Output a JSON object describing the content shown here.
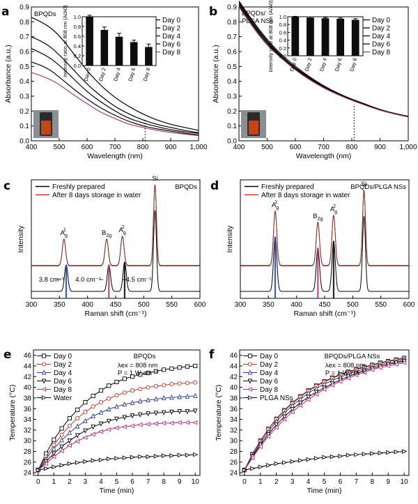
{
  "chart_data": [
    {
      "id": "a",
      "type": "line",
      "panel_label": "a",
      "inner_label": "BPQDs",
      "xlabel": "Wavelength (nm)",
      "ylabel": "Absorbance (a.u.)",
      "xlim": [
        400,
        1000
      ],
      "ylim": [
        0,
        0.9
      ],
      "xticks": [
        400,
        500,
        600,
        700,
        800,
        900,
        1000
      ],
      "xtick_labels": [
        "400",
        "500",
        "600",
        "700",
        "800",
        "900",
        "1,000"
      ],
      "yticks": [
        0.0,
        0.1,
        0.2,
        0.3,
        0.4,
        0.5,
        0.6,
        0.7,
        0.8,
        0.9
      ],
      "ytick_labels": [
        "0.0",
        "0.1",
        "0.2",
        "0.3",
        "0.4",
        "0.5",
        "0.6",
        "0.7",
        "0.8",
        "0.9"
      ],
      "marker_line_x": 808,
      "x": [
        400,
        450,
        500,
        550,
        600,
        650,
        700,
        750,
        800,
        850,
        900,
        950,
        1000
      ],
      "series": [
        {
          "name": "Day 0",
          "color": "#000000",
          "values": [
            0.83,
            0.79,
            0.71,
            0.59,
            0.47,
            0.37,
            0.29,
            0.23,
            0.18,
            0.14,
            0.11,
            0.09,
            0.07
          ]
        },
        {
          "name": "Day 2",
          "color": "#000000",
          "values": [
            0.7,
            0.66,
            0.58,
            0.48,
            0.38,
            0.3,
            0.23,
            0.18,
            0.14,
            0.11,
            0.09,
            0.07,
            0.055
          ]
        },
        {
          "name": "Day 4",
          "color": "#000000",
          "values": [
            0.62,
            0.58,
            0.51,
            0.42,
            0.33,
            0.26,
            0.2,
            0.15,
            0.12,
            0.095,
            0.075,
            0.06,
            0.05
          ]
        },
        {
          "name": "Day 6",
          "color": "#000000",
          "values": [
            0.53,
            0.5,
            0.43,
            0.35,
            0.28,
            0.22,
            0.17,
            0.13,
            0.1,
            0.08,
            0.065,
            0.05,
            0.04
          ]
        },
        {
          "name": "Day 8",
          "color": "#a03f7a",
          "values": [
            0.46,
            0.43,
            0.38,
            0.31,
            0.25,
            0.19,
            0.15,
            0.11,
            0.09,
            0.07,
            0.055,
            0.045,
            0.035
          ]
        }
      ],
      "legend": [
        "Day 0",
        "Day 2",
        "Day 4",
        "Day 6",
        "Day 8"
      ],
      "inset": {
        "type": "bar",
        "ylabel": "Intensity ratio at 808 nm (A/A0)",
        "ylim": [
          0,
          1.0
        ],
        "yticks": [
          0.0,
          0.2,
          0.4,
          0.6,
          0.8,
          1.0
        ],
        "ytick_labels": [
          "0.0",
          "0.2",
          "0.4",
          "0.6",
          "0.8",
          "1.0"
        ],
        "categories": [
          "Day 0",
          "Day 2",
          "Day 4",
          "Day 6",
          "Day 8"
        ],
        "values": [
          1.0,
          0.73,
          0.59,
          0.48,
          0.38
        ],
        "errors": [
          0.03,
          0.06,
          0.07,
          0.04,
          0.06
        ]
      }
    },
    {
      "id": "b",
      "type": "line",
      "panel_label": "b",
      "inner_label": "BPQDs/ PLGA NSs",
      "inner_label_lines": [
        "BPQDs/",
        "PLGA NSs"
      ],
      "xlabel": "Wavelength (nm)",
      "ylabel": "Absorbance (a.u.)",
      "xlim": [
        400,
        1000
      ],
      "ylim": [
        0,
        0.9
      ],
      "xticks": [
        400,
        500,
        600,
        700,
        800,
        900,
        1000
      ],
      "xtick_labels": [
        "400",
        "500",
        "600",
        "700",
        "800",
        "900",
        "1,000"
      ],
      "yticks": [
        0.0,
        0.1,
        0.2,
        0.3,
        0.4,
        0.5,
        0.6,
        0.7,
        0.8,
        0.9
      ],
      "ytick_labels": [
        "0.0",
        "0.1",
        "0.2",
        "0.3",
        "0.4",
        "0.5",
        "0.6",
        "0.7",
        "0.8",
        "0.9"
      ],
      "marker_line_x": 808,
      "x": [
        400,
        450,
        500,
        550,
        600,
        650,
        700,
        750,
        800,
        850,
        900,
        950,
        1000
      ],
      "series": [
        {
          "name": "Day 0",
          "color": "#000000",
          "values": [
            0.94,
            0.8,
            0.68,
            0.58,
            0.5,
            0.43,
            0.37,
            0.32,
            0.28,
            0.245,
            0.21,
            0.185,
            0.165
          ]
        },
        {
          "name": "Day 2",
          "color": "#000000",
          "values": [
            0.93,
            0.79,
            0.67,
            0.57,
            0.49,
            0.425,
            0.365,
            0.318,
            0.278,
            0.243,
            0.209,
            0.183,
            0.163
          ]
        },
        {
          "name": "Day 4",
          "color": "#000000",
          "values": [
            0.92,
            0.78,
            0.66,
            0.565,
            0.485,
            0.42,
            0.362,
            0.315,
            0.276,
            0.241,
            0.208,
            0.182,
            0.162
          ]
        },
        {
          "name": "Day 6",
          "color": "#000000",
          "values": [
            0.91,
            0.77,
            0.65,
            0.56,
            0.48,
            0.415,
            0.358,
            0.312,
            0.274,
            0.239,
            0.206,
            0.181,
            0.161
          ]
        },
        {
          "name": "Day 8",
          "color": "#a03f7a",
          "values": [
            0.9,
            0.76,
            0.64,
            0.555,
            0.475,
            0.41,
            0.355,
            0.31,
            0.272,
            0.237,
            0.205,
            0.18,
            0.16
          ]
        }
      ],
      "legend": [
        "Day 0",
        "Day 2",
        "Day 4",
        "Day 6",
        "Day 8"
      ],
      "inset": {
        "type": "bar",
        "ylabel": "Intensity ratio at 808 nm (A/A0)",
        "ylim": [
          0,
          1.0
        ],
        "yticks": [
          0.0,
          0.2,
          0.4,
          0.6,
          0.8,
          1.0
        ],
        "ytick_labels": [
          "0.0",
          "0.2",
          "0.4",
          "0.6",
          "0.8",
          "1.0"
        ],
        "categories": [
          "Day 0",
          "Day 2",
          "Day 4",
          "Day 6",
          "Day 8"
        ],
        "values": [
          1.0,
          0.98,
          0.96,
          0.95,
          0.92
        ],
        "errors": [
          0.01,
          0.02,
          0.02,
          0.02,
          0.03
        ]
      }
    },
    {
      "id": "c",
      "type": "line",
      "panel_label": "c",
      "inner_label": "BPQDs",
      "xlabel": "Raman shift (cm⁻¹)",
      "ylabel": "Intensity",
      "xlim": [
        300,
        600
      ],
      "xticks": [
        300,
        350,
        400,
        450,
        500,
        550,
        600
      ],
      "xtick_labels": [
        "300",
        "350",
        "400",
        "450",
        "500",
        "550",
        "600"
      ],
      "series": [
        {
          "name": "Freshly prepared",
          "color": "#000000"
        },
        {
          "name": "After 8 days storage in water",
          "color": "#c0392b"
        }
      ],
      "legend": [
        "Freshly prepared",
        "After 8 days storage in water"
      ],
      "peaks": [
        {
          "label": "A",
          "sup": "1",
          "sub": "g",
          "fresh": 362,
          "aged": 358
        },
        {
          "label": "B",
          "sup": "",
          "sub": "2g",
          "fresh": 438,
          "aged": 434
        },
        {
          "label": "A",
          "sup": "2",
          "sub": "g",
          "fresh": 466,
          "aged": 462
        },
        {
          "label": "Si",
          "sup": "",
          "sub": "",
          "fresh": 520,
          "aged": 520
        }
      ],
      "shifts": [
        "3.8 cm⁻¹",
        "4.0 cm⁻¹",
        "4.5 cm⁻¹"
      ]
    },
    {
      "id": "d",
      "type": "line",
      "panel_label": "d",
      "inner_label": "BPQDs/PLGA NSs",
      "xlabel": "Raman shift (cm⁻¹)",
      "ylabel": "Intensity",
      "xlim": [
        300,
        600
      ],
      "xticks": [
        300,
        350,
        400,
        450,
        500,
        550,
        600
      ],
      "xtick_labels": [
        "300",
        "350",
        "400",
        "450",
        "500",
        "550",
        "600"
      ],
      "series": [
        {
          "name": "Freshly prepared",
          "color": "#000000"
        },
        {
          "name": "After 8 days storage in water",
          "color": "#c0392b"
        }
      ],
      "legend": [
        "Freshly prepared",
        "After 8 days storage in water"
      ],
      "peaks": [
        {
          "label": "A",
          "sup": "1",
          "sub": "g",
          "fresh": 362,
          "aged": 362
        },
        {
          "label": "B",
          "sup": "",
          "sub": "2g",
          "fresh": 438,
          "aged": 438
        },
        {
          "label": "A",
          "sup": "2",
          "sub": "g",
          "fresh": 466,
          "aged": 466
        },
        {
          "label": "Si",
          "sup": "",
          "sub": "",
          "fresh": 520,
          "aged": 520
        }
      ]
    },
    {
      "id": "e",
      "type": "line",
      "panel_label": "e",
      "inner_label": "BPQDs",
      "condition_lines": [
        "λex = 808 nm",
        "P = 1 W cm⁻²"
      ],
      "xlabel": "Time (min)",
      "ylabel": "Temperature (°C)",
      "xlim": [
        -0.3,
        10.3
      ],
      "ylim": [
        23.5,
        47
      ],
      "xticks": [
        0,
        1,
        2,
        3,
        4,
        5,
        6,
        7,
        8,
        9,
        10
      ],
      "xtick_labels": [
        "0",
        "1",
        "2",
        "3",
        "4",
        "5",
        "6",
        "7",
        "8",
        "9",
        "10"
      ],
      "yticks": [
        24,
        26,
        28,
        30,
        32,
        34,
        36,
        38,
        40,
        42,
        44,
        46
      ],
      "ytick_labels": [
        "24",
        "26",
        "28",
        "30",
        "32",
        "34",
        "36",
        "38",
        "40",
        "42",
        "44",
        "46"
      ],
      "x": [
        0,
        0.5,
        1,
        1.5,
        2,
        2.5,
        3,
        3.5,
        4,
        4.5,
        5,
        5.5,
        6,
        6.5,
        7,
        7.5,
        8,
        8.5,
        9,
        9.5,
        10
      ],
      "series": [
        {
          "name": "Day 0",
          "color": "#000000",
          "marker": "square",
          "values": [
            24.5,
            27.6,
            30.2,
            32.3,
            34.2,
            35.8,
            37.2,
            38.4,
            39.4,
            40.3,
            41.0,
            41.6,
            42.0,
            42.4,
            42.7,
            43.0,
            43.3,
            43.5,
            43.7,
            43.9,
            44.0
          ]
        },
        {
          "name": "Day 2",
          "color": "#c0392b",
          "marker": "circle",
          "values": [
            24.5,
            27.0,
            29.2,
            31.1,
            32.8,
            34.2,
            35.4,
            36.4,
            37.2,
            37.9,
            38.5,
            39.0,
            39.4,
            39.7,
            40.0,
            40.2,
            40.4,
            40.6,
            40.7,
            40.8,
            40.9
          ]
        },
        {
          "name": "Day 4",
          "color": "#2c3e8f",
          "marker": "triangle-up",
          "values": [
            24.5,
            26.6,
            28.5,
            30.1,
            31.5,
            32.7,
            33.7,
            34.6,
            35.3,
            35.9,
            36.4,
            36.8,
            37.1,
            37.4,
            37.6,
            37.8,
            38.0,
            38.1,
            38.2,
            38.3,
            38.4
          ]
        },
        {
          "name": "Day 6",
          "color": "#000000",
          "marker": "triangle-down",
          "values": [
            24.5,
            26.1,
            27.6,
            28.9,
            30.0,
            31.0,
            31.9,
            32.6,
            33.2,
            33.7,
            34.1,
            34.4,
            34.7,
            34.9,
            35.1,
            35.2,
            35.3,
            35.4,
            35.5,
            35.5,
            35.6
          ]
        },
        {
          "name": "Day 8",
          "color": "#b0306f",
          "marker": "triangle-left",
          "values": [
            24.5,
            25.7,
            27.0,
            28.1,
            29.1,
            29.9,
            30.6,
            31.2,
            31.7,
            32.1,
            32.4,
            32.6,
            32.8,
            33.0,
            33.1,
            33.2,
            33.3,
            33.3,
            33.4,
            33.4,
            33.4
          ]
        },
        {
          "name": "Water",
          "color": "#000000",
          "marker": "triangle-right",
          "values": [
            24.5,
            24.8,
            25.1,
            25.4,
            25.7,
            25.9,
            26.1,
            26.3,
            26.4,
            26.6,
            26.7,
            26.8,
            26.9,
            27.0,
            27.0,
            27.1,
            27.2,
            27.2,
            27.3,
            27.3,
            27.4
          ]
        }
      ],
      "legend": [
        "Day 0",
        "Day 2",
        "Day 4",
        "Day 6",
        "Day 8",
        "Water"
      ]
    },
    {
      "id": "f",
      "type": "line",
      "panel_label": "f",
      "inner_label": "BPQDs/PLGA NSs",
      "condition_lines": [
        "λex = 808 nm",
        "P = 1 W cm⁻²"
      ],
      "xlabel": "Time (min)",
      "ylabel": "Temperature (°C)",
      "xlim": [
        -0.3,
        10.3
      ],
      "ylim": [
        23.5,
        47
      ],
      "xticks": [
        0,
        1,
        2,
        3,
        4,
        5,
        6,
        7,
        8,
        9,
        10
      ],
      "xtick_labels": [
        "0",
        "1",
        "2",
        "3",
        "4",
        "5",
        "6",
        "7",
        "8",
        "9",
        "10"
      ],
      "yticks": [
        24,
        26,
        28,
        30,
        32,
        34,
        36,
        38,
        40,
        42,
        44,
        46
      ],
      "ytick_labels": [
        "24",
        "26",
        "28",
        "30",
        "32",
        "34",
        "36",
        "38",
        "40",
        "42",
        "44",
        "46"
      ],
      "x": [
        0,
        0.5,
        1,
        1.5,
        2,
        2.5,
        3,
        3.5,
        4,
        4.5,
        5,
        5.5,
        6,
        6.5,
        7,
        7.5,
        8,
        8.5,
        9,
        9.5,
        10
      ],
      "series": [
        {
          "name": "Day 0",
          "color": "#000000",
          "marker": "square",
          "values": [
            24.5,
            27.5,
            30.0,
            32.2,
            34.1,
            35.7,
            37.1,
            38.3,
            39.4,
            40.3,
            41.1,
            41.8,
            42.4,
            42.9,
            43.4,
            43.8,
            44.2,
            44.6,
            44.9,
            45.2,
            45.5
          ]
        },
        {
          "name": "Day 2",
          "color": "#c0392b",
          "marker": "circle",
          "values": [
            24.5,
            27.4,
            29.9,
            32.1,
            34.0,
            35.6,
            37.0,
            38.2,
            39.3,
            40.2,
            41.0,
            41.7,
            42.3,
            42.8,
            43.3,
            43.7,
            44.1,
            44.5,
            44.8,
            45.1,
            45.3
          ]
        },
        {
          "name": "Day 4",
          "color": "#2c3e8f",
          "marker": "triangle-up",
          "values": [
            24.5,
            27.2,
            29.6,
            31.7,
            33.6,
            35.2,
            36.6,
            37.8,
            38.9,
            39.8,
            40.6,
            41.3,
            41.9,
            42.5,
            43.0,
            43.4,
            43.8,
            44.2,
            44.5,
            44.8,
            45.1
          ]
        },
        {
          "name": "Day 6",
          "color": "#000000",
          "marker": "triangle-down",
          "values": [
            24.5,
            27.0,
            29.2,
            31.2,
            33.0,
            34.5,
            35.9,
            37.1,
            38.2,
            39.1,
            39.9,
            40.7,
            41.4,
            42.0,
            42.6,
            43.1,
            43.5,
            43.9,
            44.3,
            44.6,
            44.9
          ]
        },
        {
          "name": "Day 8",
          "color": "#b0306f",
          "marker": "triangle-left",
          "values": [
            24.5,
            26.8,
            28.9,
            30.8,
            32.5,
            34.0,
            35.4,
            36.6,
            37.7,
            38.7,
            39.6,
            40.4,
            41.1,
            41.7,
            42.3,
            42.8,
            43.3,
            43.7,
            44.0,
            44.3,
            44.6
          ]
        },
        {
          "name": "PLGA NSs",
          "color": "#000000",
          "marker": "triangle-right",
          "values": [
            24.5,
            24.8,
            25.1,
            25.4,
            25.7,
            25.9,
            26.1,
            26.3,
            26.5,
            26.7,
            26.9,
            27.0,
            27.1,
            27.3,
            27.4,
            27.5,
            27.6,
            27.7,
            27.8,
            27.9,
            28.0
          ]
        }
      ],
      "legend": [
        "Day 0",
        "Day 2",
        "Day 4",
        "Day 6",
        "Day 8",
        "PLGA NSs"
      ]
    }
  ]
}
